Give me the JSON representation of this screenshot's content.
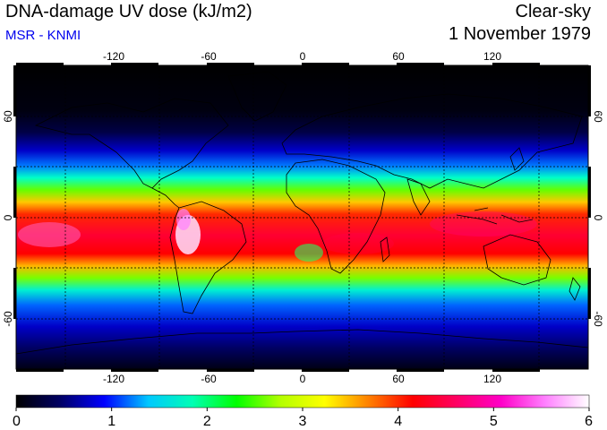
{
  "header": {
    "title": "DNA-damage UV dose (kJ/m2)",
    "source": "MSR - KNMI",
    "sky_condition": "Clear-sky",
    "date": "1 November 1979"
  },
  "map": {
    "lon_ticks": [
      "-120",
      "-60",
      "0",
      "60",
      "120"
    ],
    "lat_ticks": [
      "60",
      "0",
      "-60"
    ],
    "lon_range": [
      -180,
      180
    ],
    "lat_range": [
      -90,
      90
    ]
  },
  "colorbar": {
    "min": 0,
    "max": 6,
    "labels": [
      "0",
      "1",
      "2",
      "3",
      "4",
      "5",
      "6"
    ],
    "colors": [
      "#000000",
      "#000064",
      "#0000ff",
      "#00c8ff",
      "#00ffb4",
      "#00ff00",
      "#b4ff00",
      "#ffff00",
      "#ff8000",
      "#ff0000",
      "#ff0064",
      "#ff00c8",
      "#ff80ff",
      "#ffffff"
    ]
  }
}
